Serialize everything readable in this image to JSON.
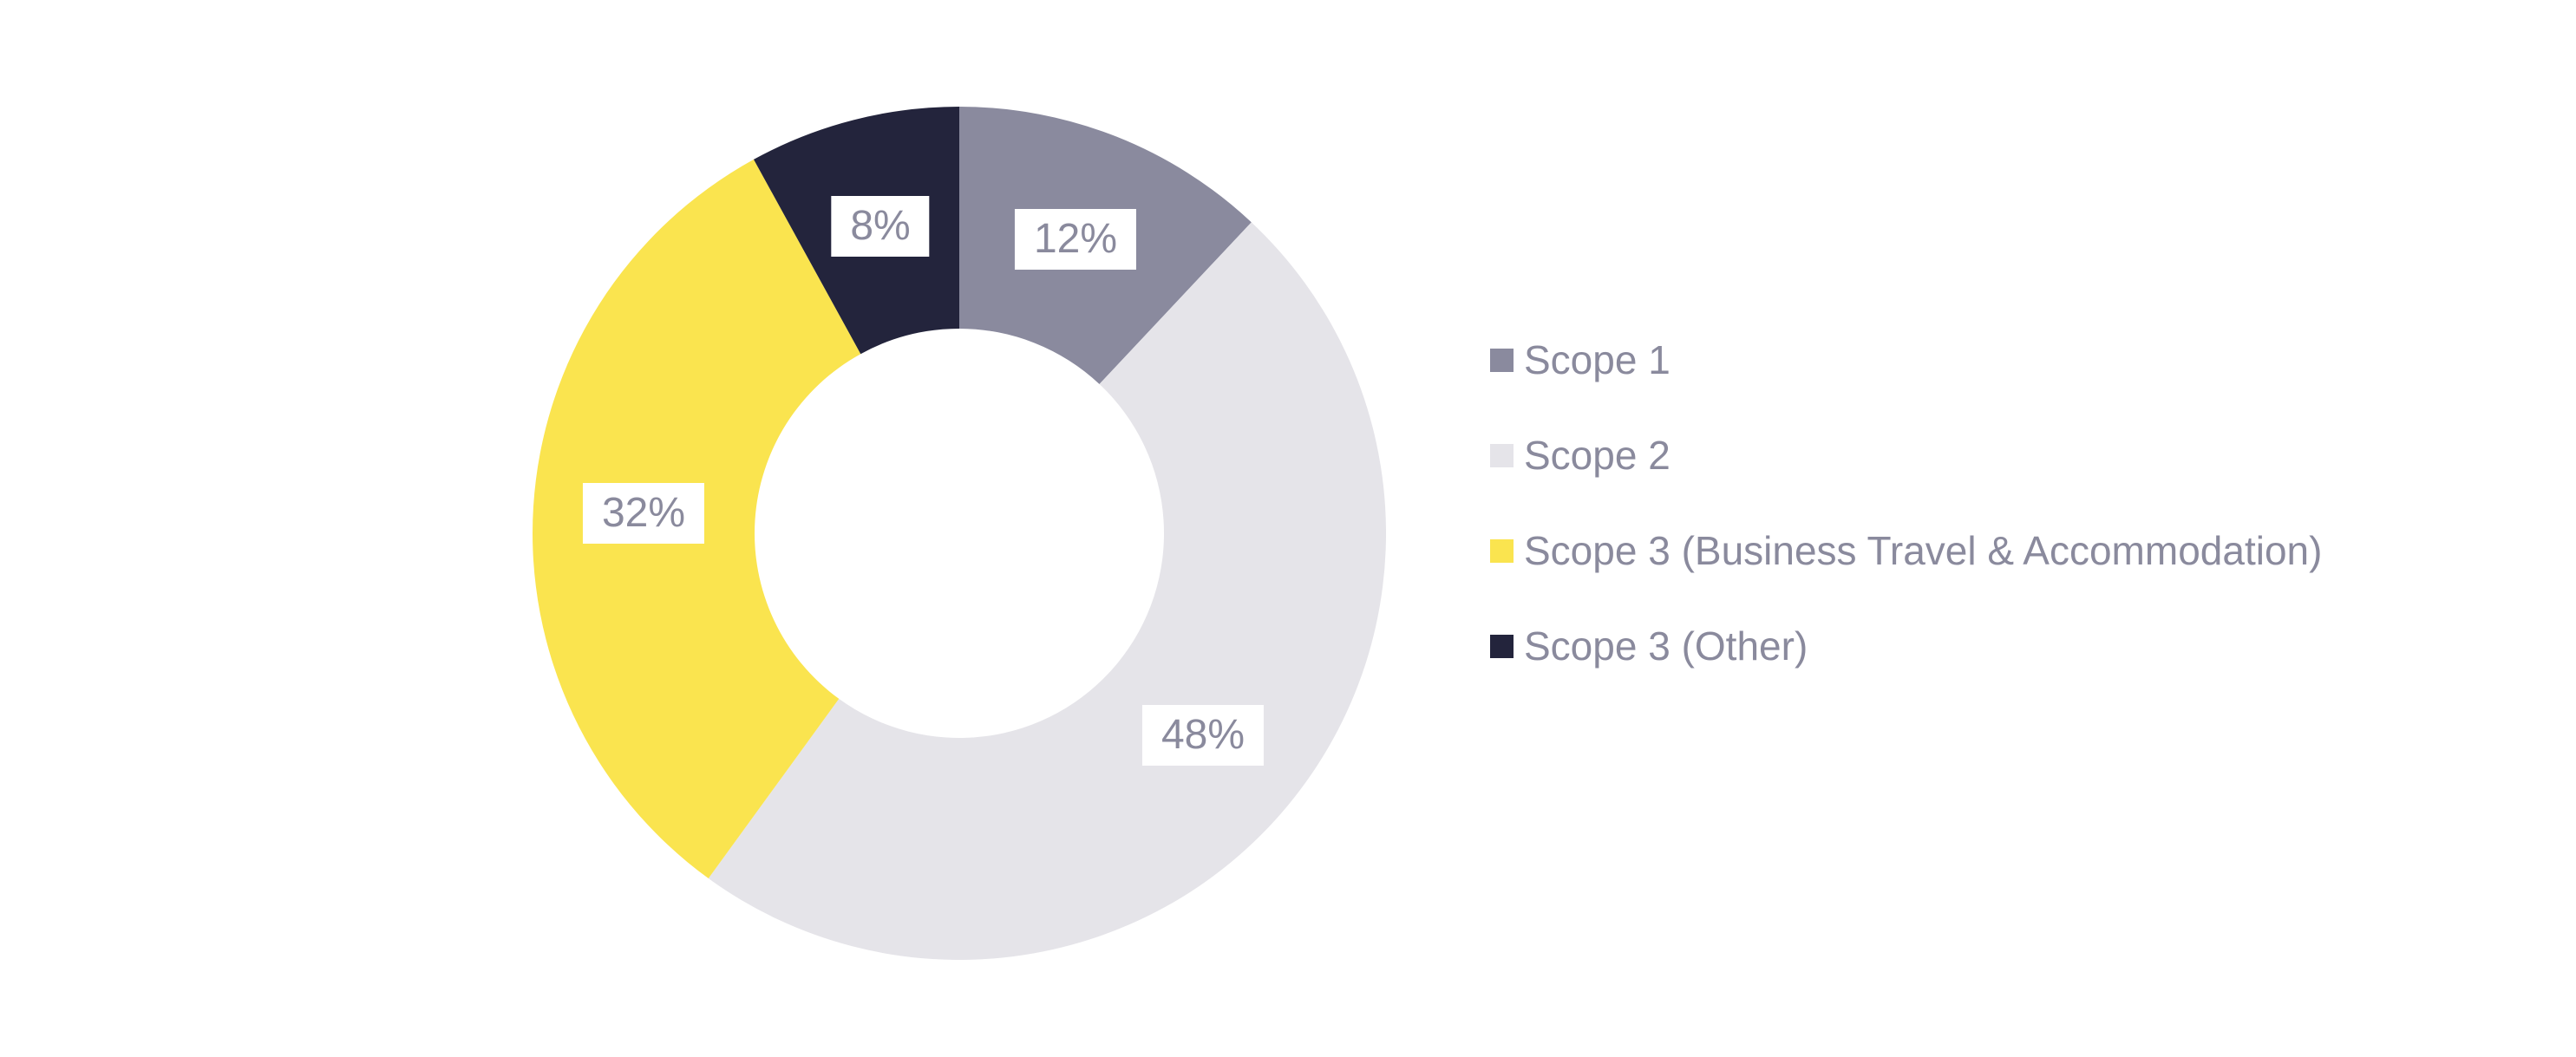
{
  "page": {
    "background": "#FFFFFF",
    "title": ""
  },
  "chart_data": {
    "type": "pie",
    "variant": "donut",
    "title": "",
    "categories": [
      "Scope 1",
      "Scope 2",
      "Scope 3 (Business Travel & Accommodation)",
      "Scope 3 (Other)"
    ],
    "values": [
      12,
      48,
      32,
      8
    ],
    "series": [
      {
        "name": "Scope 1",
        "value": 12,
        "label": "12%",
        "color": "#8A8A9E"
      },
      {
        "name": "Scope 2",
        "value": 48,
        "label": "48%",
        "color": "#E5E4E9"
      },
      {
        "name": "Scope 3 (Business Travel & Accommodation)",
        "value": 32,
        "label": "32%",
        "color": "#FAE44F"
      },
      {
        "name": "Scope 3 (Other)",
        "value": 8,
        "label": "8%",
        "color": "#23243C"
      }
    ],
    "total": 100,
    "values_unit": "%",
    "start_angle": "top",
    "direction": "clockwise",
    "donut_hole_ratio": 0.48,
    "legend_position": "right",
    "grid": false,
    "label_style": {
      "background": "#FFFFFF",
      "text_color": "#8A8A9D"
    },
    "legend_style": {
      "text_color": "#8A8A9D"
    }
  }
}
